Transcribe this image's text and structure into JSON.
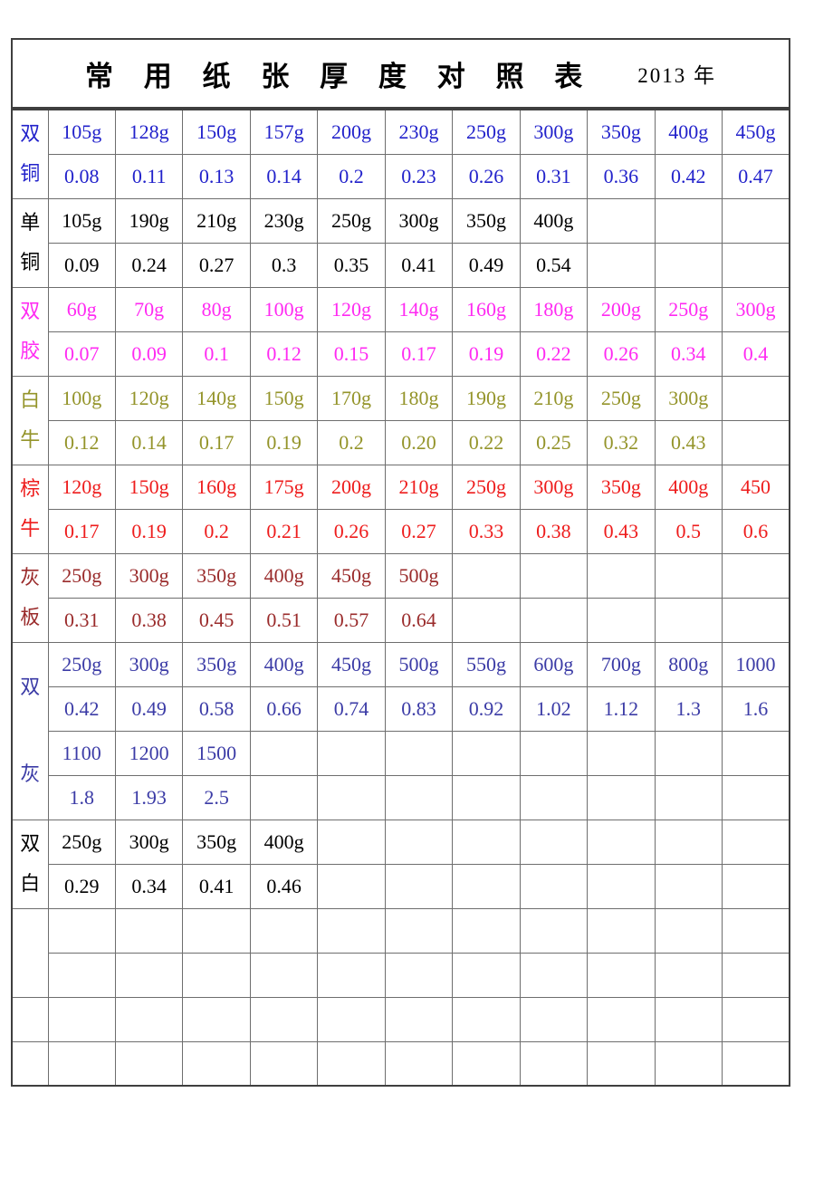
{
  "header": {
    "title": "常 用 纸 张 厚 度 对 照 表",
    "year": "2013 年"
  },
  "table": {
    "data_columns": 11,
    "groups": [
      {
        "label": "双铜",
        "color": "#2222cb",
        "pairs": [
          {
            "weights": [
              "105g",
              "128g",
              "150g",
              "157g",
              "200g",
              "230g",
              "250g",
              "300g",
              "350g",
              "400g",
              "450g"
            ],
            "thickness": [
              "0.08",
              "0.11",
              "0.13",
              "0.14",
              "0.2",
              "0.23",
              "0.26",
              "0.31",
              "0.36",
              "0.42",
              "0.47"
            ]
          }
        ]
      },
      {
        "label": "单铜",
        "color": "#000000",
        "pairs": [
          {
            "weights": [
              "105g",
              "190g",
              "210g",
              "230g",
              "250g",
              "300g",
              "350g",
              "400g",
              "",
              "",
              ""
            ],
            "thickness": [
              "0.09",
              "0.24",
              "0.27",
              "0.3",
              "0.35",
              "0.41",
              "0.49",
              "0.54",
              "",
              "",
              ""
            ]
          }
        ]
      },
      {
        "label": "双胶",
        "color": "#ff2af2",
        "pairs": [
          {
            "weights": [
              "60g",
              "70g",
              "80g",
              "100g",
              "120g",
              "140g",
              "160g",
              "180g",
              "200g",
              "250g",
              "300g"
            ],
            "thickness": [
              "0.07",
              "0.09",
              "0.1",
              "0.12",
              "0.15",
              "0.17",
              "0.19",
              "0.22",
              "0.26",
              "0.34",
              "0.4"
            ]
          }
        ]
      },
      {
        "label": "白牛",
        "color": "#94942a",
        "pairs": [
          {
            "weights": [
              "100g",
              "120g",
              "140g",
              "150g",
              "170g",
              "180g",
              "190g",
              "210g",
              "250g",
              "300g",
              ""
            ],
            "thickness": [
              "0.12",
              "0.14",
              "0.17",
              "0.19",
              "0.2",
              "0.20",
              "0.22",
              "0.25",
              "0.32",
              "0.43",
              ""
            ]
          }
        ]
      },
      {
        "label": "棕牛",
        "color": "#ee1c1c",
        "pairs": [
          {
            "weights": [
              "120g",
              "150g",
              "160g",
              "175g",
              "200g",
              "210g",
              "250g",
              "300g",
              "350g",
              "400g",
              "450"
            ],
            "thickness": [
              "0.17",
              "0.19",
              "0.2",
              "0.21",
              "0.26",
              "0.27",
              "0.33",
              "0.38",
              "0.43",
              "0.5",
              "0.6"
            ]
          }
        ]
      },
      {
        "label": "灰板",
        "color": "#9a2b2b",
        "pairs": [
          {
            "weights": [
              "250g",
              "300g",
              "350g",
              "400g",
              "450g",
              "500g",
              "",
              "",
              "",
              "",
              ""
            ],
            "thickness": [
              "0.31",
              "0.38",
              "0.45",
              "0.51",
              "0.57",
              "0.64",
              "",
              "",
              "",
              "",
              ""
            ]
          }
        ]
      },
      {
        "label": "双灰",
        "color": "#3b3ba6",
        "pairs": [
          {
            "weights": [
              "250g",
              "300g",
              "350g",
              "400g",
              "450g",
              "500g",
              "550g",
              "600g",
              "700g",
              "800g",
              "1000"
            ],
            "thickness": [
              "0.42",
              "0.49",
              "0.58",
              "0.66",
              "0.74",
              "0.83",
              "0.92",
              "1.02",
              "1.12",
              "1.3",
              "1.6"
            ]
          },
          {
            "weights": [
              "1100",
              "1200",
              "1500",
              "",
              "",
              "",
              "",
              "",
              "",
              "",
              ""
            ],
            "thickness": [
              "1.8",
              "1.93",
              "2.5",
              "",
              "",
              "",
              "",
              "",
              "",
              "",
              ""
            ]
          }
        ]
      },
      {
        "label": "双白",
        "color": "#000000",
        "pairs": [
          {
            "weights": [
              "250g",
              "300g",
              "350g",
              "400g",
              "",
              "",
              "",
              "",
              "",
              "",
              ""
            ],
            "thickness": [
              "0.29",
              "0.34",
              "0.41",
              "0.46",
              "",
              "",
              "",
              "",
              "",
              "",
              ""
            ]
          }
        ]
      }
    ],
    "empty_section": {
      "merged_label_rows": 2,
      "single_rows": 2
    }
  }
}
